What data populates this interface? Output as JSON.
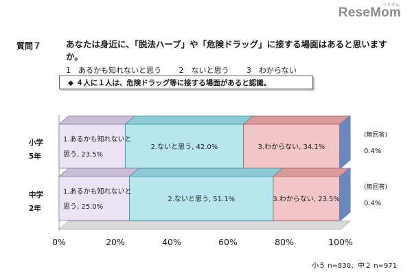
{
  "logo": {
    "text": "ReseMom",
    "superscript": "リセマム"
  },
  "question": {
    "label": "質問７",
    "text": "あなたは身近に、「脱法ハーブ」や「危険ドラッグ」に接する場面はあると思いますか。",
    "options": [
      "1　あるかも知れないと思う",
      "2　ないと思う",
      "3　わからない"
    ]
  },
  "note": "◆ ４人に１人は、危険ドラッグ等に接する場面があると認識。",
  "footnote": "小５ n=830、中２ n=971",
  "colors": {
    "series1": "#ece4f3",
    "series1_top": "#c9bcd6",
    "series1_border": "#8a7a9e",
    "series2": "#b7e6ee",
    "series2_top": "#8ccad6",
    "series2_border": "#3f8fa0",
    "series3": "#f2c6c6",
    "series3_top": "#d99a9a",
    "series3_border": "#b25b5b",
    "series4": "#6b86b8",
    "series4_top": "#8ea6d0",
    "floor": "#d9d9d9"
  },
  "chart_data": {
    "type": "bar",
    "orientation": "horizontal",
    "stacked": true,
    "categories": [
      "小学\n5年",
      "中学\n2年"
    ],
    "series": [
      {
        "name": "1.あるかも知れないと思う",
        "values": [
          23.5,
          25.0
        ]
      },
      {
        "name": "2.ないと思う",
        "values": [
          42.0,
          51.1
        ]
      },
      {
        "name": "3.わからない",
        "values": [
          34.1,
          23.5
        ]
      },
      {
        "name": "(無回答)",
        "values": [
          0.4,
          0.4
        ]
      }
    ],
    "data_labels": [
      {
        "category": 0,
        "series": 0,
        "lines": [
          "1.あるかも知れないと",
          "思う, 23.5%"
        ]
      },
      {
        "category": 0,
        "series": 1,
        "lines": [
          "2.ないと思う, 42.0%"
        ]
      },
      {
        "category": 0,
        "series": 2,
        "lines": [
          "3.わからない, 34.1%"
        ]
      },
      {
        "category": 0,
        "series": 3,
        "lines": [
          "(無回答)",
          "0.4%"
        ]
      },
      {
        "category": 1,
        "series": 0,
        "lines": [
          "1.あるかも知れないと",
          "思う, 25.0%"
        ]
      },
      {
        "category": 1,
        "series": 1,
        "lines": [
          "2.ないと思う, 51.1%"
        ]
      },
      {
        "category": 1,
        "series": 2,
        "lines": [
          "3.わからない, 23.5%"
        ]
      },
      {
        "category": 1,
        "series": 3,
        "lines": [
          "(無回答)",
          "0.4%"
        ]
      }
    ],
    "category_labels": [
      [
        "小学",
        "5年"
      ],
      [
        "中学",
        "2年"
      ]
    ],
    "xlim": [
      0,
      100
    ],
    "x_ticks": [
      "0%",
      "20%",
      "40%",
      "60%",
      "80%",
      "100%"
    ],
    "grid": false,
    "legend": "none"
  }
}
